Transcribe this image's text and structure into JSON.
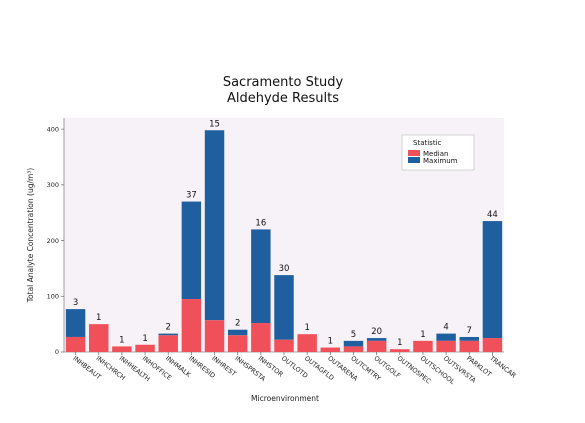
{
  "chart_data": {
    "type": "bar",
    "stacked": true,
    "title": "Sacramento Study",
    "subtitle": "Aldehyde Results",
    "xlabel": "Microenvironment",
    "ylabel": "Total Analyte Concentration (ug/m³)",
    "ylim": [
      0,
      420
    ],
    "yticks": [
      0,
      100,
      200,
      300,
      400
    ],
    "grid": false,
    "legend": {
      "title": "Statistic",
      "placement": "top-right",
      "entries": [
        "Median",
        "Maximum"
      ]
    },
    "colors": {
      "median": "#f0505a",
      "maximum": "#1f5fa0",
      "plot_bg": "#f7f2f7"
    },
    "categories": [
      "INHBEAUT",
      "INHCHRCH",
      "INHHEALTH",
      "INHOFFICE",
      "INHMALK",
      "INHRESID",
      "INHREST",
      "INHSPRSTA",
      "INHSTOR",
      "OUTLOTD",
      "OUTAGFLD",
      "OUTARENA",
      "OUTCMTRY",
      "OUTGOLF",
      "OUTNOSPEC",
      "OUTSCHOOL",
      "OUTSVRSTA",
      "PARKLOT",
      "TRANCAR"
    ],
    "counts": [
      "3",
      "1",
      "1",
      "1",
      "2",
      "37",
      "15",
      "2",
      "16",
      "30",
      "1",
      "1",
      "5",
      "20",
      "1",
      "1",
      "4",
      "7",
      "44"
    ],
    "series": [
      {
        "name": "Median",
        "values": [
          27,
          50,
          10,
          13,
          30,
          95,
          57,
          30,
          52,
          22,
          32,
          8,
          10,
          20,
          5,
          20,
          20,
          20,
          25
        ]
      },
      {
        "name": "Maximum",
        "values": [
          77,
          50,
          10,
          13,
          33,
          270,
          398,
          40,
          220,
          138,
          32,
          8,
          20,
          25,
          5,
          20,
          33,
          27,
          235
        ]
      }
    ]
  }
}
